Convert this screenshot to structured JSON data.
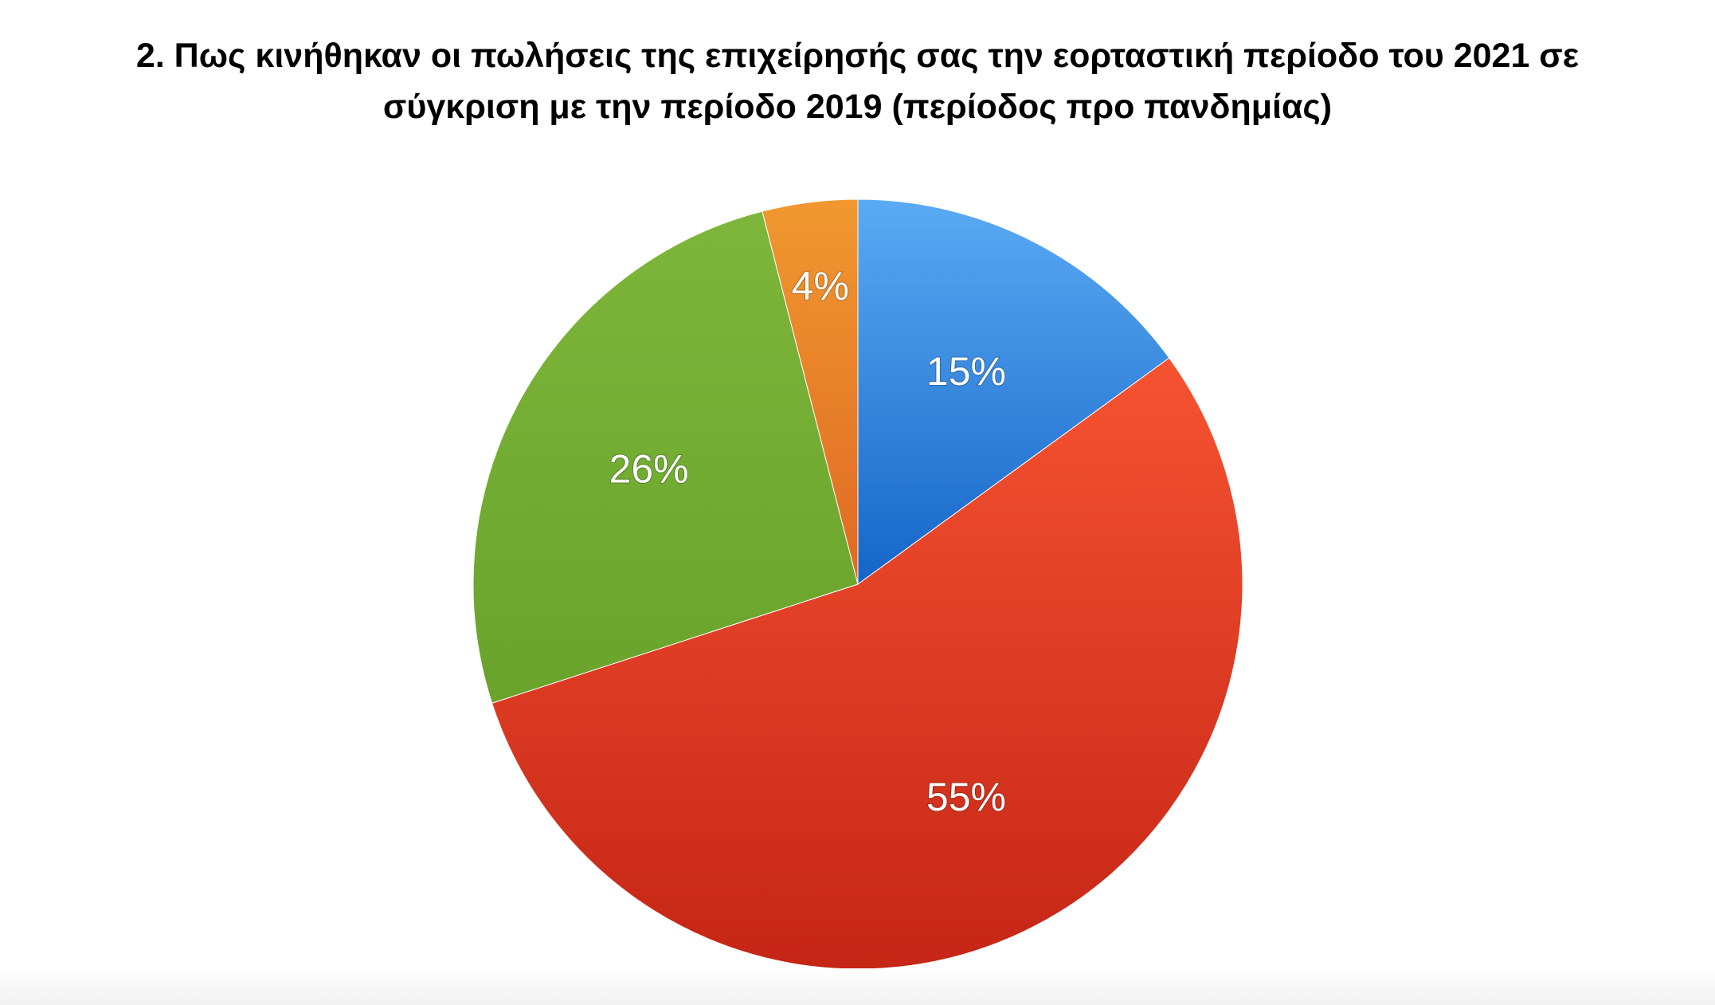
{
  "chart_data": {
    "type": "pie",
    "title_lines": [
      "2. Πως κινήθηκαν οι πωλήσεις της επιχείρησής σας την εορταστική περίοδο του 2021 σε",
      "σύγκριση με την περίοδο 2019 (περίοδος προ πανδημίας)"
    ],
    "start": "top",
    "direction": "clockwise",
    "slices": [
      {
        "value": 15,
        "label": "15%",
        "color_top": "#5aaaf4",
        "color_bottom": "#1565c8"
      },
      {
        "value": 55,
        "label": "55%",
        "color_top": "#f65331",
        "color_bottom": "#c52516"
      },
      {
        "value": 26,
        "label": "26%",
        "color_top": "#7db63a",
        "color_bottom": "#6aa32b"
      },
      {
        "value": 4,
        "label": "4%",
        "color_top": "#f0982f",
        "color_bottom": "#e06924"
      }
    ]
  }
}
